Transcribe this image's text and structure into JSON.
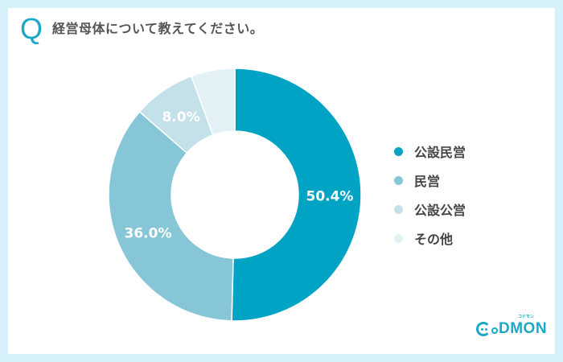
{
  "question": {
    "marker": "Q",
    "text": "経営母体について教えてください。"
  },
  "colors": {
    "background": "#d6f1fa",
    "card": "#ffffff",
    "accent": "#1ba8c7"
  },
  "legend": [
    {
      "label": "公設民営",
      "color": "#00a3c4"
    },
    {
      "label": "民営",
      "color": "#86c6d6"
    },
    {
      "label": "公設公営",
      "color": "#c4e1ea"
    },
    {
      "label": "その他",
      "color": "#e2f1f6"
    }
  ],
  "logo": {
    "text": "DMON",
    "tagline": "コドモン"
  },
  "chart_data": {
    "type": "pie",
    "subtype": "donut",
    "title": "経営母体について教えてください。",
    "categories": [
      "公設民営",
      "民営",
      "公設公営",
      "その他"
    ],
    "values": [
      50.4,
      36.0,
      8.0,
      5.6
    ],
    "labels": [
      "50.4%",
      "36.0%",
      "8.0%",
      ""
    ],
    "colors": [
      "#00a3c4",
      "#86c6d6",
      "#c4e1ea",
      "#e2f1f6"
    ],
    "start_angle": "12 o'clock",
    "direction": "clockwise",
    "legend_position": "right",
    "unit": "%"
  }
}
